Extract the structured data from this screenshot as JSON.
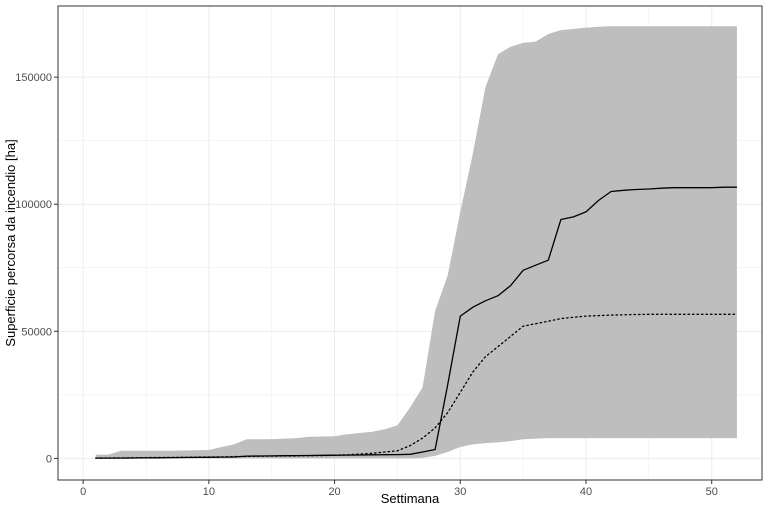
{
  "chart_data": {
    "type": "line",
    "title": "",
    "xlabel": "Settimana",
    "ylabel": "Superficie percorsa da incendio [ha]",
    "xlim": [
      -2,
      54
    ],
    "ylim": [
      -8500,
      178000
    ],
    "x_ticks": [
      0,
      10,
      20,
      30,
      40,
      50
    ],
    "x_tick_labels": [
      "0",
      "10",
      "20",
      "30",
      "40",
      "50"
    ],
    "y_ticks": [
      0,
      50000,
      100000,
      150000
    ],
    "y_tick_labels": [
      "0",
      "50000",
      "100000",
      "150000"
    ],
    "grid": true,
    "legend": "none",
    "colors": {
      "band": "#bebebe",
      "line": "#000000",
      "grid": "#ebebeb",
      "panel_border": "#333333"
    },
    "series": [
      {
        "style": "band",
        "x": [
          1,
          2,
          3,
          4,
          5,
          6,
          7,
          8,
          9,
          10,
          11,
          12,
          13,
          14,
          15,
          16,
          17,
          18,
          19,
          20,
          21,
          22,
          23,
          24,
          25,
          26,
          27,
          28,
          29,
          30,
          31,
          32,
          33,
          34,
          35,
          36,
          37,
          38,
          39,
          40,
          41,
          42,
          43,
          44,
          45,
          46,
          47,
          48,
          49,
          50,
          51,
          52
        ],
        "lower": [
          0,
          0,
          0,
          0,
          0,
          0,
          0,
          0,
          0,
          0,
          0,
          0,
          0,
          0,
          0,
          0,
          0,
          0,
          0,
          0,
          0,
          0,
          0,
          0,
          0,
          0,
          200,
          1000,
          2500,
          4500,
          5500,
          6000,
          6300,
          6800,
          7500,
          7800,
          8000,
          8000,
          8000,
          8000,
          8000,
          8000,
          8000,
          8000,
          8000,
          8000,
          8000,
          8000,
          8000,
          8000,
          8000,
          8000
        ],
        "upper": [
          1500,
          1500,
          3000,
          3000,
          3000,
          3000,
          3000,
          3100,
          3200,
          3300,
          4500,
          5500,
          7500,
          7500,
          7600,
          7800,
          8000,
          8500,
          8600,
          8700,
          9500,
          10000,
          10500,
          11500,
          13000,
          20000,
          28000,
          58000,
          72000,
          97000,
          120000,
          146000,
          159000,
          162000,
          163500,
          164000,
          167000,
          168500,
          169000,
          169500,
          169800,
          170000,
          170000,
          170000,
          170000,
          170000,
          170000,
          170000,
          170000,
          170000,
          170000,
          170000
        ]
      },
      {
        "style": "solid",
        "x": [
          1,
          2,
          3,
          4,
          5,
          6,
          7,
          8,
          9,
          10,
          11,
          12,
          13,
          14,
          15,
          16,
          17,
          18,
          19,
          20,
          21,
          22,
          23,
          24,
          25,
          26,
          27,
          28,
          29,
          30,
          31,
          32,
          33,
          34,
          35,
          36,
          37,
          38,
          39,
          40,
          41,
          42,
          43,
          44,
          45,
          46,
          47,
          48,
          49,
          50,
          51,
          52
        ],
        "values": [
          100,
          100,
          100,
          150,
          200,
          250,
          300,
          350,
          400,
          450,
          500,
          550,
          900,
          950,
          1000,
          1050,
          1100,
          1150,
          1200,
          1250,
          1300,
          1350,
          1400,
          1450,
          1500,
          1600,
          2500,
          3500,
          29000,
          56000,
          59500,
          62000,
          64000,
          68000,
          74000,
          76000,
          78000,
          94000,
          95000,
          97000,
          101500,
          105000,
          105500,
          105800,
          106000,
          106300,
          106500,
          106500,
          106500,
          106500,
          106700,
          106700
        ]
      },
      {
        "style": "dotted",
        "x": [
          1,
          2,
          3,
          4,
          5,
          6,
          7,
          8,
          9,
          10,
          11,
          12,
          13,
          14,
          15,
          16,
          17,
          18,
          19,
          20,
          21,
          22,
          23,
          24,
          25,
          26,
          27,
          28,
          29,
          30,
          31,
          32,
          33,
          34,
          35,
          36,
          37,
          38,
          39,
          40,
          41,
          42,
          43,
          44,
          45,
          46,
          47,
          48,
          49,
          50,
          51,
          52
        ],
        "values": [
          100,
          150,
          200,
          250,
          300,
          350,
          400,
          450,
          500,
          550,
          600,
          700,
          800,
          850,
          900,
          950,
          1000,
          1050,
          1100,
          1200,
          1400,
          1700,
          2000,
          2500,
          3000,
          5000,
          8000,
          12000,
          18000,
          26000,
          34000,
          40000,
          44000,
          48000,
          52000,
          53000,
          54000,
          55000,
          55500,
          56000,
          56200,
          56400,
          56500,
          56600,
          56700,
          56700,
          56700,
          56700,
          56700,
          56700,
          56700,
          56700
        ]
      }
    ]
  }
}
